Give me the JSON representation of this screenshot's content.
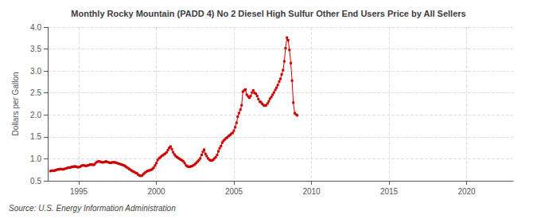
{
  "chart_data": {
    "type": "line",
    "title": "Monthly Rocky Mountain (PADD 4) No 2 Diesel High Sulfur Other End Users Price by All Sellers",
    "ylabel": "Dollars per Gallon",
    "source": "Source: U.S. Energy Information Administration",
    "color": "#cc0000",
    "marker": "square",
    "line_style": "solid",
    "grid": true,
    "xlim": [
      1993.0,
      2023.0
    ],
    "ylim": [
      0.5,
      4.0
    ],
    "xticks": [
      1995,
      2000,
      2005,
      2010,
      2015,
      2020
    ],
    "yticks": [
      0.5,
      {
        "value": 1.0,
        "label": "1.0"
      },
      1.5,
      {
        "value": 2.0,
        "label": "2.0"
      },
      2.5,
      {
        "value": 3.0,
        "label": "3.0"
      },
      3.5,
      {
        "value": 4.0,
        "label": "4.0"
      }
    ],
    "x": [
      1993.17,
      1993.25,
      1993.33,
      1993.42,
      1993.5,
      1993.58,
      1993.67,
      1993.75,
      1993.83,
      1993.92,
      1994.0,
      1994.08,
      1994.17,
      1994.25,
      1994.33,
      1994.42,
      1994.5,
      1994.58,
      1994.67,
      1994.75,
      1994.83,
      1994.92,
      1995.0,
      1995.08,
      1995.17,
      1995.25,
      1995.33,
      1995.42,
      1995.5,
      1995.58,
      1995.67,
      1995.75,
      1995.83,
      1995.92,
      1996.0,
      1996.08,
      1996.17,
      1996.25,
      1996.33,
      1996.42,
      1996.5,
      1996.58,
      1996.67,
      1996.75,
      1996.83,
      1996.92,
      1997.0,
      1997.08,
      1997.17,
      1997.25,
      1997.33,
      1997.42,
      1997.5,
      1997.58,
      1997.67,
      1997.75,
      1997.83,
      1997.92,
      1998.0,
      1998.08,
      1998.17,
      1998.25,
      1998.33,
      1998.42,
      1998.5,
      1998.58,
      1998.67,
      1998.75,
      1998.83,
      1998.92,
      1999.0,
      1999.08,
      1999.17,
      1999.25,
      1999.33,
      1999.42,
      1999.5,
      1999.58,
      1999.67,
      1999.75,
      1999.83,
      1999.92,
      2000.0,
      2000.08,
      2000.17,
      2000.25,
      2000.33,
      2000.42,
      2000.5,
      2000.58,
      2000.67,
      2000.75,
      2000.83,
      2000.92,
      2001.0,
      2001.08,
      2001.17,
      2001.25,
      2001.33,
      2001.42,
      2001.5,
      2001.58,
      2001.67,
      2001.75,
      2001.83,
      2001.92,
      2002.0,
      2002.08,
      2002.17,
      2002.25,
      2002.33,
      2002.42,
      2002.5,
      2002.58,
      2002.67,
      2002.75,
      2002.83,
      2002.92,
      2003.0,
      2003.08,
      2003.17,
      2003.25,
      2003.33,
      2003.42,
      2003.5,
      2003.58,
      2003.67,
      2003.75,
      2003.83,
      2003.92,
      2004.0,
      2004.08,
      2004.17,
      2004.25,
      2004.33,
      2004.42,
      2004.5,
      2004.58,
      2004.67,
      2004.75,
      2004.83,
      2004.92,
      2005.0,
      2005.08,
      2005.17,
      2005.25,
      2005.33,
      2005.42,
      2005.5,
      2005.58,
      2005.67,
      2005.75,
      2005.83,
      2005.92,
      2006.0,
      2006.08,
      2006.17,
      2006.25,
      2006.33,
      2006.42,
      2006.5,
      2006.58,
      2006.67,
      2006.75,
      2006.83,
      2006.92,
      2007.0,
      2007.08,
      2007.17,
      2007.25,
      2007.33,
      2007.42,
      2007.5,
      2007.58,
      2007.67,
      2007.75,
      2007.83,
      2007.92,
      2008.0,
      2008.08,
      2008.17,
      2008.25,
      2008.33,
      2008.42,
      2008.5,
      2008.58,
      2008.67,
      2008.75,
      2008.83,
      2008.92,
      2009.0,
      2009.08
    ],
    "values": [
      0.72,
      0.73,
      0.73,
      0.73,
      0.74,
      0.75,
      0.76,
      0.76,
      0.77,
      0.76,
      0.76,
      0.77,
      0.78,
      0.79,
      0.8,
      0.8,
      0.81,
      0.82,
      0.82,
      0.83,
      0.82,
      0.81,
      0.81,
      0.82,
      0.84,
      0.85,
      0.85,
      0.84,
      0.84,
      0.85,
      0.86,
      0.87,
      0.87,
      0.86,
      0.87,
      0.9,
      0.93,
      0.94,
      0.94,
      0.93,
      0.92,
      0.92,
      0.93,
      0.94,
      0.93,
      0.92,
      0.91,
      0.91,
      0.92,
      0.92,
      0.92,
      0.91,
      0.9,
      0.89,
      0.88,
      0.87,
      0.86,
      0.85,
      0.83,
      0.81,
      0.79,
      0.77,
      0.75,
      0.73,
      0.71,
      0.7,
      0.68,
      0.67,
      0.64,
      0.62,
      0.61,
      0.62,
      0.65,
      0.68,
      0.7,
      0.72,
      0.73,
      0.74,
      0.75,
      0.77,
      0.8,
      0.85,
      0.9,
      0.97,
      1.01,
      1.03,
      1.06,
      1.08,
      1.1,
      1.12,
      1.15,
      1.2,
      1.25,
      1.28,
      1.22,
      1.15,
      1.1,
      1.06,
      1.04,
      1.02,
      1.0,
      0.98,
      0.96,
      0.94,
      0.9,
      0.85,
      0.83,
      0.82,
      0.82,
      0.83,
      0.84,
      0.86,
      0.88,
      0.91,
      0.94,
      0.97,
      1.01,
      1.09,
      1.16,
      1.21,
      1.11,
      1.06,
      1.01,
      0.98,
      0.96,
      0.96,
      0.98,
      1.01,
      1.04,
      1.09,
      1.17,
      1.24,
      1.29,
      1.37,
      1.41,
      1.44,
      1.47,
      1.49,
      1.52,
      1.54,
      1.57,
      1.59,
      1.64,
      1.72,
      1.82,
      1.96,
      2.04,
      2.12,
      2.22,
      2.53,
      2.56,
      2.58,
      2.46,
      2.42,
      2.39,
      2.43,
      2.51,
      2.56,
      2.5,
      2.48,
      2.43,
      2.36,
      2.3,
      2.29,
      2.25,
      2.22,
      2.21,
      2.22,
      2.26,
      2.31,
      2.37,
      2.41,
      2.46,
      2.51,
      2.57,
      2.62,
      2.68,
      2.76,
      2.82,
      2.92,
      3.02,
      3.22,
      3.52,
      3.76,
      3.7,
      3.48,
      3.18,
      2.78,
      2.28,
      2.04,
      2.01,
      1.99
    ]
  }
}
